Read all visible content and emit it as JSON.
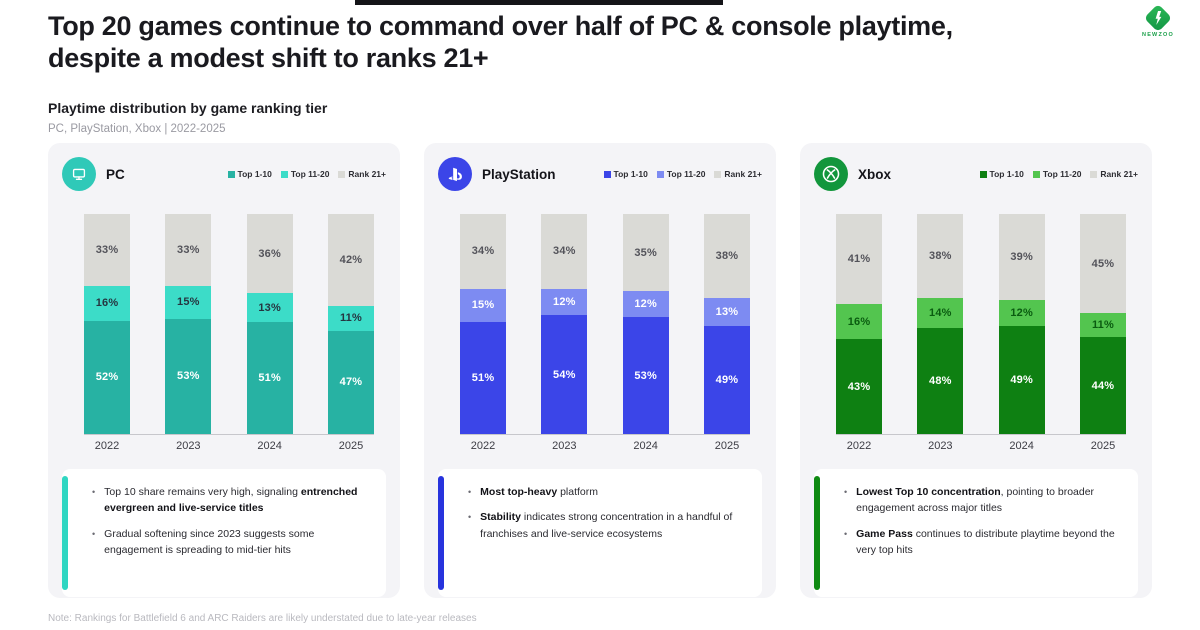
{
  "header": {
    "title_line1": "Top 20 games continue to command over half of PC & console playtime,",
    "title_line2": "despite a modest shift to ranks 21+",
    "subtitle": "Playtime distribution by game ranking tier",
    "scope": "PC, PlayStation, Xbox | 2022-2025",
    "brand": "NEWZOO"
  },
  "legend_labels": [
    "Top 1-10",
    "Top 11-20",
    "Rank 21+"
  ],
  "chart_data": [
    {
      "type": "bar",
      "stacked": true,
      "title": "PC",
      "categories": [
        "2022",
        "2023",
        "2024",
        "2025"
      ],
      "series": [
        {
          "name": "Top 1-10",
          "values": [
            52,
            53,
            51,
            47
          ]
        },
        {
          "name": "Top 11-20",
          "values": [
            16,
            15,
            13,
            11
          ]
        },
        {
          "name": "Rank 21+",
          "values": [
            33,
            33,
            36,
            42
          ]
        }
      ],
      "unit": "%",
      "ylim": [
        0,
        100
      ],
      "legend_position": "top-right",
      "grid": false
    },
    {
      "type": "bar",
      "stacked": true,
      "title": "PlayStation",
      "categories": [
        "2022",
        "2023",
        "2024",
        "2025"
      ],
      "series": [
        {
          "name": "Top 1-10",
          "values": [
            51,
            54,
            53,
            49
          ]
        },
        {
          "name": "Top 11-20",
          "values": [
            15,
            12,
            12,
            13
          ]
        },
        {
          "name": "Rank 21+",
          "values": [
            34,
            34,
            35,
            38
          ]
        }
      ],
      "unit": "%",
      "ylim": [
        0,
        100
      ],
      "legend_position": "top-right",
      "grid": false
    },
    {
      "type": "bar",
      "stacked": true,
      "title": "Xbox",
      "categories": [
        "2022",
        "2023",
        "2024",
        "2025"
      ],
      "series": [
        {
          "name": "Top 1-10",
          "values": [
            43,
            48,
            49,
            44
          ]
        },
        {
          "name": "Top 11-20",
          "values": [
            16,
            14,
            12,
            11
          ]
        },
        {
          "name": "Rank 21+",
          "values": [
            41,
            38,
            39,
            45
          ]
        }
      ],
      "unit": "%",
      "ylim": [
        0,
        100
      ],
      "legend_position": "top-right",
      "grid": false
    }
  ],
  "panels": [
    {
      "platform": "PC",
      "icon": "monitor-icon",
      "colors": {
        "top1_10": "#27b2a3",
        "top11_20": "#3cdcc8",
        "rank21": "#dadad6",
        "accent": "#2fd6c2",
        "icon_bg": "#2fc9b8",
        "label_bottom": "#ffffff",
        "label_mid": "#263540",
        "label_gray": "#53535a"
      },
      "bullets": [
        [
          {
            "text": "Top 10 share remains very high, signaling ",
            "bold": false
          },
          {
            "text": "entrenched evergreen and live-service titles",
            "bold": true
          }
        ],
        [
          {
            "text": "Gradual softening since 2023 suggests some engagement is spreading to mid-tier hits",
            "bold": false
          }
        ]
      ]
    },
    {
      "platform": "PlayStation",
      "icon": "playstation-icon",
      "colors": {
        "top1_10": "#3b45e8",
        "top11_20": "#7d8bf2",
        "rank21": "#dadad6",
        "accent": "#2733dd",
        "icon_bg": "#3b45e8",
        "label_bottom": "#ffffff",
        "label_mid": "#ffffff",
        "label_gray": "#53535a"
      },
      "bullets": [
        [
          {
            "text": "Most top-heavy",
            "bold": true
          },
          {
            "text": " platform",
            "bold": false
          }
        ],
        [
          {
            "text": "Stability",
            "bold": true
          },
          {
            "text": " indicates strong concentration in a handful of franchises and live-service ecosystems",
            "bold": false
          }
        ]
      ]
    },
    {
      "platform": "Xbox",
      "icon": "xbox-icon",
      "colors": {
        "top1_10": "#0e8012",
        "top11_20": "#53c54f",
        "rank21": "#dadad6",
        "accent": "#0e8a12",
        "icon_bg": "#12963c",
        "label_bottom": "#ffffff",
        "label_mid": "#0a5c10",
        "label_gray": "#53535a"
      },
      "bullets": [
        [
          {
            "text": "Lowest Top 10 concentration",
            "bold": true
          },
          {
            "text": ", pointing to broader engagement across major titles",
            "bold": false
          }
        ],
        [
          {
            "text": "Game Pass",
            "bold": true
          },
          {
            "text": " continues to distribute playtime beyond the very top hits",
            "bold": false
          }
        ]
      ]
    }
  ],
  "note": "Note: Rankings for Battlefield 6 and ARC Raiders are likely understated due to late-year releases"
}
